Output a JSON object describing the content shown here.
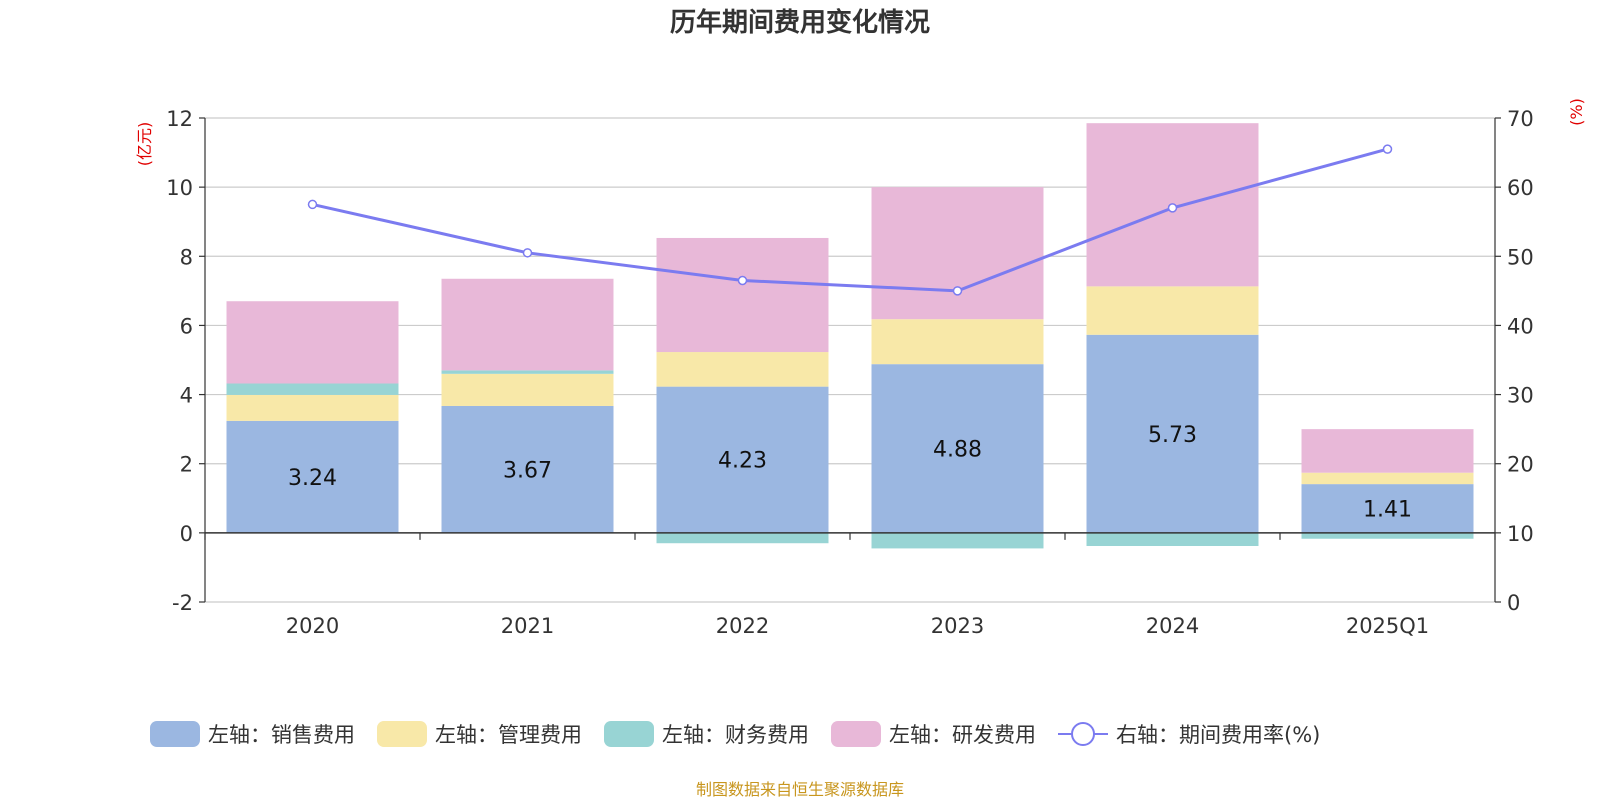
{
  "title": "历年期间费用变化情况",
  "source": "制图数据来自恒生聚源数据库",
  "chart_data": {
    "type": "bar",
    "stacked": true,
    "categories": [
      "2020",
      "2021",
      "2022",
      "2023",
      "2024",
      "2025Q1"
    ],
    "left_axis": {
      "unit": "(亿元)",
      "ylim": [
        -2,
        12
      ],
      "ticks": [
        -2,
        0,
        2,
        4,
        6,
        8,
        10,
        12
      ]
    },
    "right_axis": {
      "unit": "(%)",
      "ylim": [
        0,
        70
      ],
      "ticks": [
        0,
        10,
        20,
        30,
        40,
        50,
        60,
        70
      ]
    },
    "series": [
      {
        "name": "左轴：销售费用",
        "axis": "left",
        "type": "bar",
        "color": "#9bb7e1",
        "values": [
          3.24,
          3.67,
          4.23,
          4.88,
          5.73,
          1.41
        ],
        "labels": [
          "3.24",
          "3.67",
          "4.23",
          "4.88",
          "5.73",
          "1.41"
        ]
      },
      {
        "name": "左轴：管理费用",
        "axis": "left",
        "type": "bar",
        "color": "#f8e8a8",
        "values": [
          0.75,
          0.93,
          1.0,
          1.3,
          1.4,
          0.33
        ]
      },
      {
        "name": "左轴：财务费用",
        "axis": "left",
        "type": "bar",
        "color": "#98d4d4",
        "values": [
          0.33,
          0.1,
          -0.3,
          -0.45,
          -0.38,
          -0.17
        ]
      },
      {
        "name": "左轴：研发费用",
        "axis": "left",
        "type": "bar",
        "color": "#e8b8d8",
        "values": [
          2.38,
          2.65,
          3.3,
          3.82,
          4.72,
          1.26
        ]
      },
      {
        "name": "右轴：期间费用率(%)",
        "axis": "right",
        "type": "line",
        "color": "#7b7bf0",
        "values": [
          57.5,
          50.5,
          46.5,
          45.0,
          57.0,
          65.5
        ]
      }
    ],
    "grid": true,
    "legend_position": "bottom"
  }
}
